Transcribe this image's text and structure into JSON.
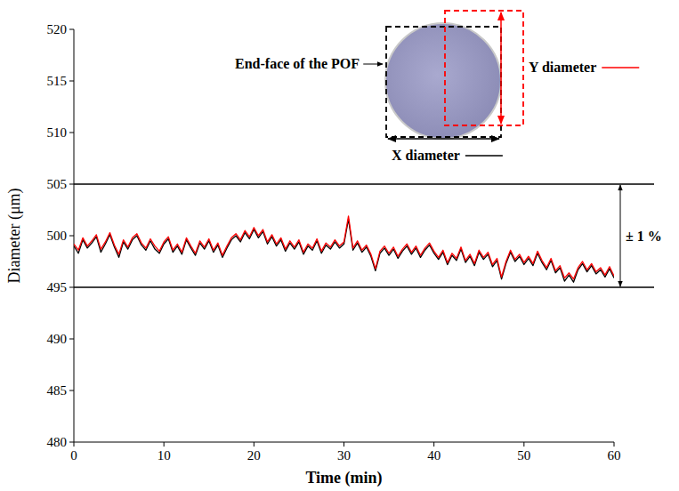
{
  "chart_data": {
    "type": "line",
    "x_label": "Time (min)",
    "y_label": "Diameter (μm)",
    "xlim": [
      0,
      60
    ],
    "xticks": [
      0,
      10,
      20,
      30,
      40,
      50,
      60
    ],
    "ylim": [
      480,
      520
    ],
    "yticks": [
      480,
      485,
      490,
      495,
      500,
      505,
      510,
      515,
      520
    ],
    "grid": false,
    "legend": "top-right",
    "inset_label": "End-face of the POF",
    "hlines": [
      505,
      495
    ],
    "band_label": "± 1 %",
    "x": [
      0,
      0.5,
      1,
      1.5,
      2,
      2.5,
      3,
      3.5,
      4,
      4.5,
      5,
      5.5,
      6,
      6.5,
      7,
      7.5,
      8,
      8.5,
      9,
      9.5,
      10,
      10.5,
      11,
      11.5,
      12,
      12.5,
      13,
      13.5,
      14,
      14.5,
      15,
      15.5,
      16,
      16.5,
      17,
      17.5,
      18,
      18.5,
      19,
      19.5,
      20,
      20.5,
      21,
      21.5,
      22,
      22.5,
      23,
      23.5,
      24,
      24.5,
      25,
      25.5,
      26,
      26.5,
      27,
      27.5,
      28,
      28.5,
      29,
      29.5,
      30,
      30.5,
      31,
      31.5,
      32,
      32.5,
      33,
      33.5,
      34,
      34.5,
      35,
      35.5,
      36,
      36.5,
      37,
      37.5,
      38,
      38.5,
      39,
      39.5,
      40,
      40.5,
      41,
      41.5,
      42,
      42.5,
      43,
      43.5,
      44,
      44.5,
      45,
      45.5,
      46,
      46.5,
      47,
      47.5,
      48,
      48.5,
      49,
      49.5,
      50,
      50.5,
      51,
      51.5,
      52,
      52.5,
      53,
      53.5,
      54,
      54.5,
      55,
      55.5,
      56,
      56.5,
      57,
      57.5,
      58,
      58.5,
      59,
      59.5,
      60
    ],
    "series": [
      {
        "name": "X diameter",
        "color": "#000000",
        "line_style": "solid",
        "values": [
          499.0,
          498.3,
          499.6,
          498.8,
          499.3,
          499.9,
          498.4,
          499.2,
          500.1,
          498.9,
          497.9,
          499.4,
          498.7,
          499.6,
          500.0,
          499.1,
          498.6,
          499.5,
          498.7,
          498.3,
          499.2,
          499.7,
          498.4,
          499.0,
          498.2,
          499.6,
          498.8,
          498.1,
          499.3,
          498.7,
          499.5,
          498.4,
          499.1,
          497.9,
          498.8,
          499.6,
          500.0,
          499.4,
          500.3,
          499.7,
          500.6,
          499.8,
          500.4,
          499.2,
          499.9,
          499.0,
          499.6,
          498.5,
          499.3,
          498.7,
          499.4,
          498.2,
          499.0,
          498.6,
          499.5,
          498.3,
          499.1,
          498.7,
          499.4,
          498.8,
          499.2,
          501.6,
          498.6,
          499.3,
          498.4,
          498.9,
          498.0,
          496.6,
          498.3,
          498.8,
          498.1,
          498.7,
          497.8,
          498.5,
          499.0,
          498.2,
          498.8,
          497.9,
          498.6,
          499.1,
          498.3,
          497.7,
          498.4,
          497.2,
          498.1,
          497.6,
          498.7,
          497.4,
          498.0,
          497.1,
          498.4,
          497.7,
          498.2,
          497.0,
          497.6,
          495.8,
          497.3,
          498.4,
          497.5,
          498.0,
          497.2,
          497.8,
          497.1,
          498.3,
          497.4,
          496.7,
          497.6,
          496.4,
          496.9,
          495.6,
          496.2,
          495.5,
          496.7,
          497.3,
          496.5,
          497.1,
          496.3,
          496.7,
          496.0,
          496.8,
          495.9
        ]
      },
      {
        "name": "Y diameter",
        "color": "#ff0000",
        "line_style": "solid",
        "values": [
          499.2,
          498.6,
          499.8,
          499.0,
          499.5,
          500.1,
          498.7,
          499.4,
          500.3,
          499.1,
          498.2,
          499.6,
          498.9,
          499.8,
          500.2,
          499.3,
          498.8,
          499.7,
          499.0,
          498.5,
          499.4,
          499.9,
          498.6,
          499.2,
          498.4,
          499.8,
          499.0,
          498.3,
          499.5,
          498.9,
          499.7,
          498.6,
          499.3,
          498.1,
          499.0,
          499.8,
          500.2,
          499.6,
          500.5,
          499.9,
          500.8,
          500.0,
          500.6,
          499.4,
          500.1,
          499.2,
          499.8,
          498.7,
          499.5,
          498.9,
          499.6,
          498.4,
          499.2,
          498.8,
          499.7,
          498.5,
          499.3,
          498.9,
          499.6,
          499.0,
          499.4,
          501.9,
          498.8,
          499.5,
          498.6,
          499.1,
          498.2,
          496.8,
          498.5,
          499.0,
          498.3,
          498.9,
          498.0,
          498.7,
          499.2,
          498.4,
          499.0,
          498.1,
          498.8,
          499.3,
          498.5,
          497.9,
          498.6,
          497.4,
          498.3,
          497.8,
          498.9,
          497.6,
          498.2,
          497.3,
          498.6,
          497.9,
          498.4,
          497.2,
          497.8,
          496.0,
          497.5,
          498.6,
          497.7,
          498.2,
          497.4,
          498.0,
          497.3,
          498.5,
          497.6,
          496.9,
          497.8,
          496.6,
          497.1,
          495.9,
          496.4,
          495.8,
          496.9,
          497.5,
          496.7,
          497.3,
          496.5,
          496.9,
          496.2,
          497.0,
          496.1
        ]
      }
    ]
  }
}
